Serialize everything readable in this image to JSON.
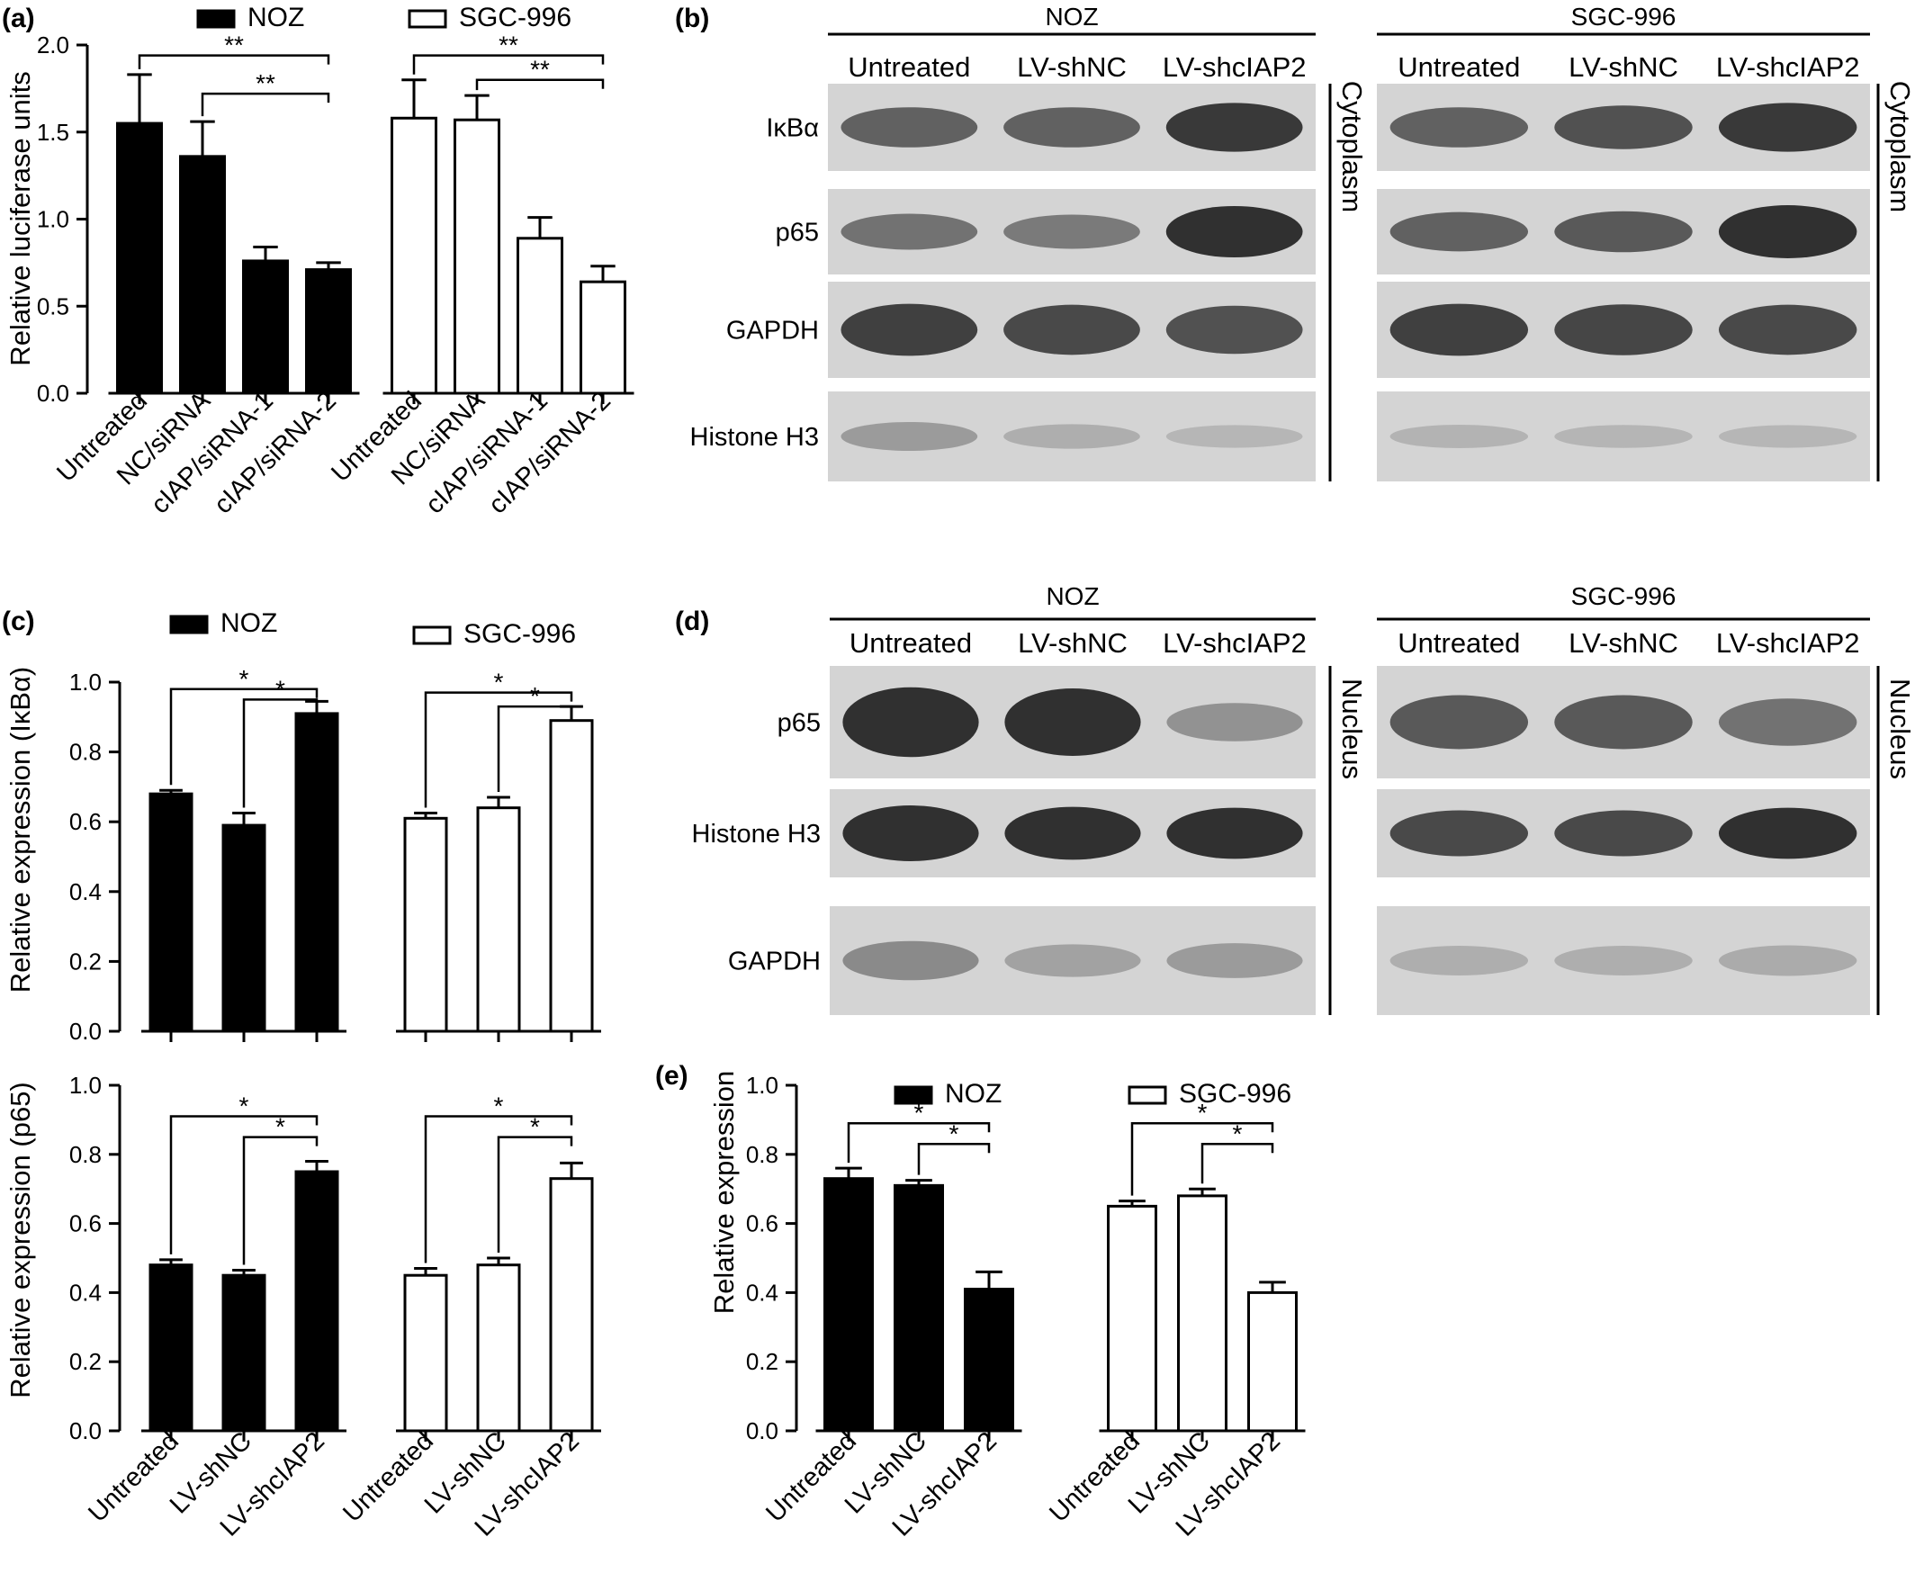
{
  "panels": {
    "a": {
      "letter": "(a)"
    },
    "b": {
      "letter": "(b)"
    },
    "c": {
      "letter": "(c)"
    },
    "d": {
      "letter": "(d)"
    },
    "e": {
      "letter": "(e)"
    }
  },
  "colors": {
    "noz_fill": "#000000",
    "sgc_fill": "#ffffff",
    "stroke": "#000000",
    "blot_bg": "#d4d4d4",
    "band": "#303030"
  },
  "chart_data": [
    {
      "id": "a",
      "type": "bar",
      "ylabel": "Relative luciferase units",
      "ylim": [
        0,
        2.0
      ],
      "yticks": [
        "0.0",
        "0.5",
        "1.0",
        "1.5",
        "2.0"
      ],
      "legend": [
        "NOZ",
        "SGC-996"
      ],
      "groups": [
        {
          "name": "NOZ",
          "categories": [
            "Untreated",
            "NC/siRNA",
            "cIAP/siRNA-1",
            "cIAP/siRNA-2"
          ],
          "values": [
            1.55,
            1.36,
            0.76,
            0.71
          ],
          "errors": [
            0.28,
            0.2,
            0.08,
            0.04
          ]
        },
        {
          "name": "SGC-996",
          "categories": [
            "Untreated",
            "NC/siRNA",
            "cIAP/siRNA-1",
            "cIAP/siRNA-2"
          ],
          "values": [
            1.58,
            1.57,
            0.89,
            0.64
          ],
          "errors": [
            0.22,
            0.14,
            0.12,
            0.09
          ]
        }
      ],
      "significance": [
        {
          "group": 0,
          "from": 0,
          "to": 3,
          "label": "**",
          "y": 1.94
        },
        {
          "group": 0,
          "from": 1,
          "to": 3,
          "label": "**",
          "y": 1.72
        },
        {
          "group": 1,
          "from": 0,
          "to": 3,
          "label": "**",
          "y": 1.94
        },
        {
          "group": 1,
          "from": 1,
          "to": 3,
          "label": "**",
          "y": 1.8
        }
      ]
    },
    {
      "id": "c-top",
      "type": "bar",
      "ylabel": "Relative expression (IκBα)",
      "ylim": [
        0,
        1.0
      ],
      "yticks": [
        "0.0",
        "0.2",
        "0.4",
        "0.6",
        "0.8",
        "1.0"
      ],
      "legend": [
        "NOZ",
        "SGC-996"
      ],
      "groups": [
        {
          "name": "NOZ",
          "categories": [
            "Untreated",
            "LV-shNC",
            "LV-shcIAP2"
          ],
          "values": [
            0.68,
            0.59,
            0.91
          ],
          "errors": [
            0.01,
            0.035,
            0.035
          ]
        },
        {
          "name": "SGC-996",
          "categories": [
            "Untreated",
            "LV-shNC",
            "LV-shcIAP2"
          ],
          "values": [
            0.61,
            0.64,
            0.89
          ],
          "errors": [
            0.015,
            0.03,
            0.04
          ]
        }
      ],
      "significance": [
        {
          "group": 0,
          "from": 0,
          "to": 2,
          "label": "*",
          "y": 0.98
        },
        {
          "group": 0,
          "from": 1,
          "to": 2,
          "label": "*",
          "y": 0.95
        },
        {
          "group": 1,
          "from": 0,
          "to": 2,
          "label": "*",
          "y": 0.97
        },
        {
          "group": 1,
          "from": 1,
          "to": 2,
          "label": "*",
          "y": 0.93
        }
      ]
    },
    {
      "id": "c-bottom",
      "type": "bar",
      "ylabel": "Relative expression (p65)",
      "ylim": [
        0,
        1.0
      ],
      "yticks": [
        "0.0",
        "0.2",
        "0.4",
        "0.6",
        "0.8",
        "1.0"
      ],
      "groups": [
        {
          "name": "NOZ",
          "categories": [
            "Untreated",
            "LV-shNC",
            "LV-shcIAP2"
          ],
          "values": [
            0.48,
            0.45,
            0.75
          ],
          "errors": [
            0.015,
            0.015,
            0.03
          ]
        },
        {
          "name": "SGC-996",
          "categories": [
            "Untreated",
            "LV-shNC",
            "LV-shcIAP2"
          ],
          "values": [
            0.45,
            0.48,
            0.73
          ],
          "errors": [
            0.02,
            0.02,
            0.045
          ]
        }
      ],
      "significance": [
        {
          "group": 0,
          "from": 0,
          "to": 2,
          "label": "*",
          "y": 0.91
        },
        {
          "group": 0,
          "from": 1,
          "to": 2,
          "label": "*",
          "y": 0.85
        },
        {
          "group": 1,
          "from": 0,
          "to": 2,
          "label": "*",
          "y": 0.91
        },
        {
          "group": 1,
          "from": 1,
          "to": 2,
          "label": "*",
          "y": 0.85
        }
      ]
    },
    {
      "id": "e",
      "type": "bar",
      "ylabel": "Relative expression",
      "ylim": [
        0,
        1.0
      ],
      "yticks": [
        "0.0",
        "0.2",
        "0.4",
        "0.6",
        "0.8",
        "1.0"
      ],
      "legend": [
        "NOZ",
        "SGC-996"
      ],
      "groups": [
        {
          "name": "NOZ",
          "categories": [
            "Untreated",
            "LV-shNC",
            "LV-shcIAP2"
          ],
          "values": [
            0.73,
            0.71,
            0.41
          ],
          "errors": [
            0.03,
            0.015,
            0.05
          ]
        },
        {
          "name": "SGC-996",
          "categories": [
            "Untreated",
            "LV-shNC",
            "LV-shcIAP2"
          ],
          "values": [
            0.65,
            0.68,
            0.4
          ],
          "errors": [
            0.015,
            0.02,
            0.03
          ]
        }
      ],
      "significance": [
        {
          "group": 0,
          "from": 0,
          "to": 2,
          "label": "*",
          "y": 0.89
        },
        {
          "group": 0,
          "from": 1,
          "to": 2,
          "label": "*",
          "y": 0.83
        },
        {
          "group": 1,
          "from": 0,
          "to": 2,
          "label": "*",
          "y": 0.89
        },
        {
          "group": 1,
          "from": 1,
          "to": 2,
          "label": "*",
          "y": 0.83
        }
      ]
    }
  ],
  "western_blots": [
    {
      "id": "b",
      "compartment": "Cytoplasm",
      "cell_lines": [
        "NOZ",
        "SGC-996"
      ],
      "lanes": [
        "Untreated",
        "LV-shNC",
        "LV-shcIAP2"
      ],
      "rows": [
        {
          "label": "IκBα",
          "noz": [
            0.55,
            0.55,
            0.8
          ],
          "sgc": [
            0.55,
            0.65,
            0.8
          ]
        },
        {
          "label": "p65",
          "noz": [
            0.45,
            0.4,
            0.9
          ],
          "sgc": [
            0.55,
            0.6,
            0.95
          ]
        },
        {
          "label": "GAPDH",
          "noz": [
            0.75,
            0.7,
            0.65
          ],
          "sgc": [
            0.75,
            0.72,
            0.7
          ]
        },
        {
          "label": "Histone H3",
          "noz": [
            0.2,
            0.08,
            0.03
          ],
          "sgc": [
            0.05,
            0.04,
            0.03
          ]
        }
      ]
    },
    {
      "id": "d",
      "compartment": "Nucleus",
      "cell_lines": [
        "NOZ",
        "SGC-996"
      ],
      "lanes": [
        "Untreated",
        "LV-shNC",
        "LV-shcIAP2"
      ],
      "rows": [
        {
          "label": "p65",
          "noz": [
            0.95,
            0.9,
            0.25
          ],
          "sgc": [
            0.6,
            0.6,
            0.45
          ]
        },
        {
          "label": "Histone H3",
          "noz": [
            0.98,
            0.9,
            0.85
          ],
          "sgc": [
            0.7,
            0.7,
            0.85
          ]
        },
        {
          "label": "GAPDH",
          "noz": [
            0.3,
            0.15,
            0.2
          ],
          "sgc": [
            0.08,
            0.08,
            0.1
          ]
        }
      ]
    }
  ]
}
